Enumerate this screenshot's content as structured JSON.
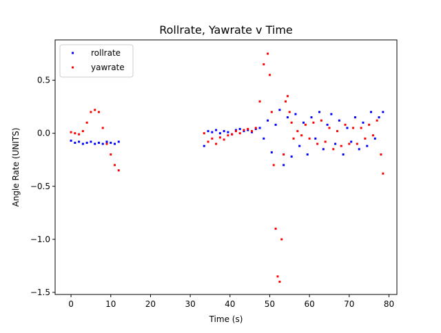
{
  "chart_data": {
    "type": "scatter",
    "title": "Rollrate, Yawrate v Time",
    "xlabel": "Time (s)",
    "ylabel": "Angle Rate (UNITS)",
    "xlim": [
      -4,
      82
    ],
    "ylim": [
      -1.52,
      0.88
    ],
    "xticks": [
      0,
      10,
      20,
      30,
      40,
      50,
      60,
      70,
      80
    ],
    "yticks": [
      -1.5,
      -1.0,
      -0.5,
      0.0,
      0.5
    ],
    "xtick_labels": [
      "0",
      "10",
      "20",
      "30",
      "40",
      "50",
      "60",
      "70",
      "80"
    ],
    "ytick_labels": [
      "−1.5",
      "−1.0",
      "−0.5",
      "0.0",
      "0.5"
    ],
    "grid": false,
    "legend_position": "upper-left",
    "marker_size": "small",
    "series": [
      {
        "name": "rollrate",
        "color": "#0000ff",
        "x": [
          0,
          1,
          2,
          3,
          4,
          5,
          6,
          7,
          8,
          9,
          10,
          11,
          12,
          33.5,
          34.5,
          35.5,
          36.5,
          37.5,
          38.5,
          39.5,
          40.5,
          41.5,
          42.5,
          43.5,
          44.5,
          45.5,
          46.5,
          47.5,
          48.5,
          49.5,
          50.5,
          51.5,
          52.5,
          53.5,
          54.5,
          55.5,
          56.5,
          57.5,
          58.5,
          59.5,
          60.5,
          61.5,
          62.5,
          63.5,
          64.5,
          65.5,
          66.5,
          67.5,
          68.5,
          69.5,
          70.5,
          71.5,
          72.5,
          73.5,
          74.5,
          75.5,
          76.5,
          77.5,
          78.5
        ],
        "y": [
          -0.07,
          -0.09,
          -0.08,
          -0.1,
          -0.09,
          -0.08,
          -0.1,
          -0.09,
          -0.1,
          -0.08,
          -0.09,
          -0.1,
          -0.08,
          -0.12,
          0.02,
          0.01,
          0.03,
          0.0,
          0.02,
          0.01,
          -0.01,
          0.03,
          0.04,
          0.02,
          0.03,
          0.01,
          0.04,
          0.05,
          -0.05,
          0.12,
          -0.18,
          0.08,
          0.22,
          -0.3,
          0.15,
          -0.22,
          0.18,
          -0.12,
          0.1,
          -0.2,
          0.15,
          -0.05,
          0.2,
          -0.15,
          0.08,
          0.18,
          -0.1,
          0.12,
          -0.2,
          0.05,
          -0.08,
          0.15,
          -0.15,
          0.1,
          -0.12,
          0.2,
          -0.05,
          0.15,
          0.2
        ]
      },
      {
        "name": "yawrate",
        "color": "#ff0000",
        "x": [
          0,
          1,
          2,
          3,
          4,
          5,
          6,
          7,
          8,
          9,
          10,
          11,
          12,
          33.5,
          34.5,
          35.5,
          36.5,
          37.5,
          38.5,
          39.5,
          40.5,
          41.5,
          42.5,
          43.5,
          44.5,
          45.5,
          46.5,
          47.5,
          48.5,
          49.5,
          50.0,
          50.5,
          51.0,
          51.5,
          52.0,
          52.5,
          53.0,
          53.5,
          54.0,
          54.5,
          55.0,
          55.5,
          56.0,
          57.0,
          58.0,
          59.0,
          60.0,
          61.0,
          62.0,
          63.0,
          64.0,
          65.0,
          66.0,
          67.0,
          68.0,
          69.0,
          70.0,
          71.0,
          72.0,
          73.0,
          74.0,
          75.0,
          76.0,
          77.0,
          78.0,
          78.5
        ],
        "y": [
          0.01,
          0.0,
          -0.01,
          0.02,
          0.1,
          0.2,
          0.22,
          0.2,
          0.05,
          -0.1,
          -0.2,
          -0.3,
          -0.35,
          0.0,
          -0.08,
          -0.05,
          -0.1,
          -0.04,
          -0.06,
          -0.02,
          -0.01,
          0.02,
          0.0,
          0.03,
          0.04,
          0.02,
          0.05,
          0.3,
          0.65,
          0.75,
          0.55,
          0.2,
          -0.3,
          -0.9,
          -1.35,
          -1.4,
          -1.0,
          -0.2,
          0.3,
          0.35,
          0.2,
          0.1,
          -0.05,
          0.02,
          -0.02,
          0.08,
          -0.05,
          0.1,
          -0.1,
          0.12,
          -0.08,
          0.05,
          -0.15,
          0.02,
          -0.12,
          0.08,
          -0.1,
          0.05,
          -0.1,
          0.05,
          -0.05,
          0.08,
          -0.02,
          0.12,
          -0.2,
          -0.38
        ]
      }
    ]
  }
}
